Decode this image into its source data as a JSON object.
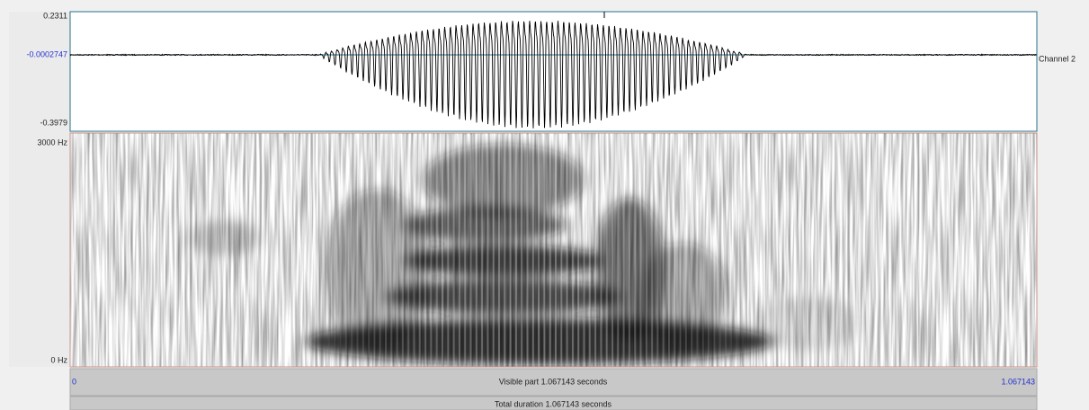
{
  "waveform": {
    "max_label": "0.2311",
    "center_label": "-0.0002747",
    "min_label": "-0.3979",
    "channel_label": "Channel 2"
  },
  "spectrogram": {
    "top_label": "3000 Hz",
    "bottom_label": "0 Hz"
  },
  "time_bar": {
    "start_label": "0",
    "visible_label": "Visible part 1.067143 seconds",
    "end_label": "1.067143",
    "total_label": "Total duration 1.067143 seconds"
  }
}
